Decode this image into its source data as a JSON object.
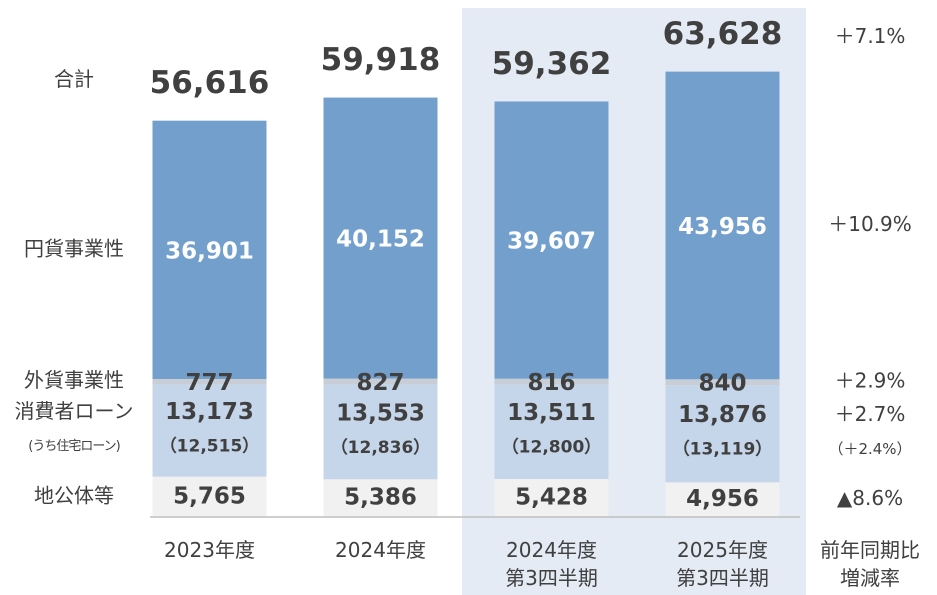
{
  "chart_data": {
    "type": "stacked-bar",
    "categories": [
      "2023年度",
      "2024年度",
      "2024年度\n第3四半期",
      "2025年度\n第3四半期"
    ],
    "ylim": [
      0,
      70000
    ],
    "change_header": "前年同期比\n増減率",
    "totals": {
      "name": "合計",
      "values": [
        56616,
        59918,
        59362,
        63628
      ],
      "value_labels": [
        "56,616",
        "59,918",
        "59,362",
        "63,628"
      ],
      "change": "＋7.1%"
    },
    "series": [
      {
        "name": "地公体等",
        "color": "#f1f1f1",
        "values": [
          5765,
          5386,
          5428,
          4956
        ],
        "value_labels": [
          "5,765",
          "5,386",
          "5,428",
          "4,956"
        ],
        "change": "▲8.6%"
      },
      {
        "name": "消費者ローン",
        "color": "#c6d6ea",
        "values": [
          13173,
          13553,
          13511,
          13876
        ],
        "value_labels": [
          "13,173",
          "13,553",
          "13,511",
          "13,876"
        ],
        "change": "＋2.7%",
        "sub": {
          "name": "(うち住宅ローン)",
          "values": [
            12515,
            12836,
            12800,
            13119
          ],
          "value_labels": [
            "（12,515）",
            "（12,836）",
            "（12,800）",
            "（13,119）"
          ],
          "change": "（＋2.4%）"
        }
      },
      {
        "name": "外貨事業性",
        "color": "#c9ced6",
        "values": [
          777,
          827,
          816,
          840
        ],
        "value_labels": [
          "777",
          "827",
          "816",
          "840"
        ],
        "change": "＋2.9%"
      },
      {
        "name": "円貨事業性",
        "color": "#739fcd",
        "values": [
          36901,
          40152,
          39607,
          43956
        ],
        "value_labels": [
          "36,901",
          "40,152",
          "39,607",
          "43,956"
        ],
        "change": "＋10.9%"
      }
    ]
  }
}
